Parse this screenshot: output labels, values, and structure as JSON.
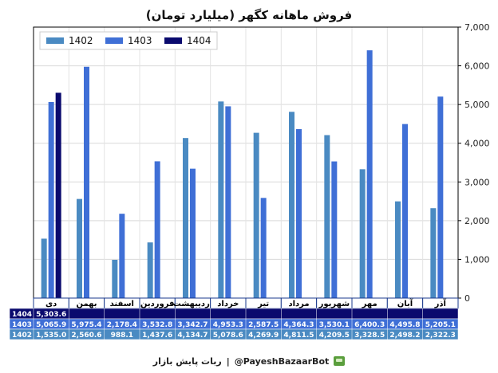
{
  "chart_data": {
    "type": "bar",
    "title": "فروش ماهانه کگهر (میلیارد تومان)",
    "categories": [
      "دی",
      "بهمن",
      "اسفند",
      "فروردین",
      "اردیبهشت",
      "خرداد",
      "تیر",
      "مرداد",
      "شهریور",
      "مهر",
      "آبان",
      "آذر"
    ],
    "series": [
      {
        "name": "1402",
        "color": "#4a8ac2",
        "values": [
          1535.0,
          2560.6,
          988.1,
          1437.6,
          4134.7,
          5078.6,
          4269.9,
          4811.5,
          4209.5,
          3328.5,
          2498.2,
          2322.3
        ],
        "labels": [
          "1,535.0",
          "2,560.6",
          "988.1",
          "1,437.6",
          "4,134.7",
          "5,078.6",
          "4,269.9",
          "4,811.5",
          "4,209.5",
          "3,328.5",
          "2,498.2",
          "2,322.3"
        ]
      },
      {
        "name": "1403",
        "color": "#3f6fd6",
        "values": [
          5065.9,
          5975.4,
          2178.4,
          3532.8,
          3342.7,
          4953.3,
          2587.5,
          4364.3,
          3530.1,
          6400.3,
          4495.8,
          5205.1
        ],
        "labels": [
          "5,065.9",
          "5,975.4",
          "2,178.4",
          "3,532.8",
          "3,342.7",
          "4,953.3",
          "2,587.5",
          "4,364.3",
          "3,530.1",
          "6,400.3",
          "4,495.8",
          "5,205.1"
        ]
      },
      {
        "name": "1404",
        "color": "#0a0a6e",
        "values": [
          5303.6,
          null,
          null,
          null,
          null,
          null,
          null,
          null,
          null,
          null,
          null,
          null
        ],
        "labels": [
          "5,303.6",
          "",
          "",
          "",
          "",
          "",
          "",
          "",
          "",
          "",
          "",
          ""
        ]
      }
    ],
    "yticks": [
      "0",
      "1,000",
      "2,000",
      "3,000",
      "4,000",
      "5,000",
      "6,000",
      "7,000"
    ],
    "ylim": [
      0,
      7000
    ],
    "grid": true,
    "legend_position": "top-left",
    "table_row_order": [
      "1404",
      "1403",
      "1402"
    ]
  },
  "footer": {
    "handle": "@PayeshBazaarBot",
    "separator": "|",
    "name": "ربات پایش بازار"
  }
}
